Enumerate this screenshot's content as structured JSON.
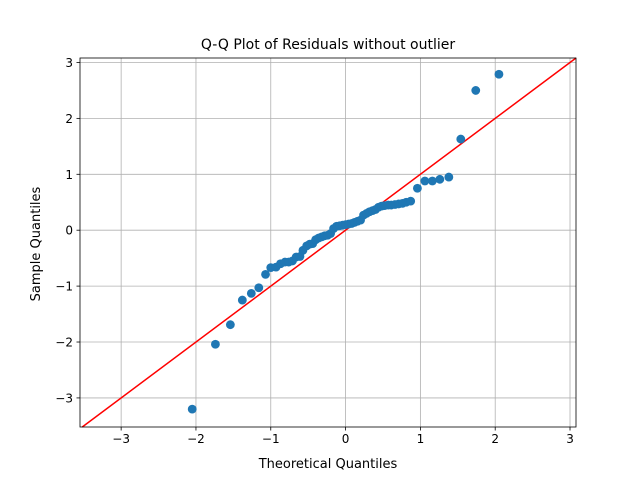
{
  "chart_data": {
    "type": "scatter",
    "title": "Q-Q Plot of Residuals without outlier",
    "xlabel": "Theoretical Quantiles",
    "ylabel": "Sample Quantiles",
    "xlim": [
      -3.55,
      3.08
    ],
    "ylim": [
      -3.52,
      3.08
    ],
    "xticks": [
      -3,
      -2,
      -1,
      0,
      1,
      2,
      3
    ],
    "xtick_labels": [
      "−3",
      "−2",
      "−1",
      "0",
      "1",
      "2",
      "3"
    ],
    "yticks": [
      -3,
      -2,
      -1,
      0,
      1,
      2,
      3
    ],
    "ytick_labels": [
      "−3",
      "−2",
      "−1",
      "0",
      "1",
      "2",
      "3"
    ],
    "grid": true,
    "legend": "none",
    "colors": {
      "points": "#1f77b4",
      "reference_line": "#ff0000",
      "grid": "#b0b0b0"
    },
    "reference_line": {
      "slope": 1,
      "intercept": 0
    },
    "series": [
      {
        "x": [
          -2.05,
          -1.74,
          -1.54,
          -1.38,
          -1.26,
          -1.16,
          -1.07,
          -1.0,
          -0.93,
          -0.87,
          -0.81,
          -0.76,
          -0.71,
          -0.66,
          -0.61,
          -0.57,
          -0.52,
          -0.48,
          -0.44,
          -0.4,
          -0.36,
          -0.32,
          -0.28,
          -0.24,
          -0.2,
          -0.16,
          -0.12,
          -0.08,
          -0.04,
          0.0,
          0.04,
          0.08,
          0.12,
          0.16,
          0.2,
          0.24,
          0.28,
          0.32,
          0.36,
          0.4,
          0.44,
          0.48,
          0.52,
          0.57,
          0.61,
          0.66,
          0.71,
          0.76,
          0.81,
          0.87,
          0.96,
          1.06,
          1.16,
          1.26,
          1.38,
          1.54,
          1.74,
          2.05
        ],
        "y": [
          -3.2,
          -2.04,
          -1.69,
          -1.25,
          -1.13,
          -1.03,
          -0.79,
          -0.67,
          -0.66,
          -0.6,
          -0.57,
          -0.57,
          -0.55,
          -0.48,
          -0.47,
          -0.36,
          -0.28,
          -0.25,
          -0.24,
          -0.17,
          -0.14,
          -0.12,
          -0.1,
          -0.09,
          -0.06,
          0.03,
          0.07,
          0.08,
          0.09,
          0.1,
          0.11,
          0.12,
          0.14,
          0.16,
          0.18,
          0.27,
          0.3,
          0.33,
          0.35,
          0.37,
          0.41,
          0.43,
          0.44,
          0.45,
          0.45,
          0.46,
          0.47,
          0.48,
          0.5,
          0.52,
          0.75,
          0.88,
          0.88,
          0.91,
          0.95,
          1.63,
          2.5,
          2.79
        ]
      }
    ]
  }
}
